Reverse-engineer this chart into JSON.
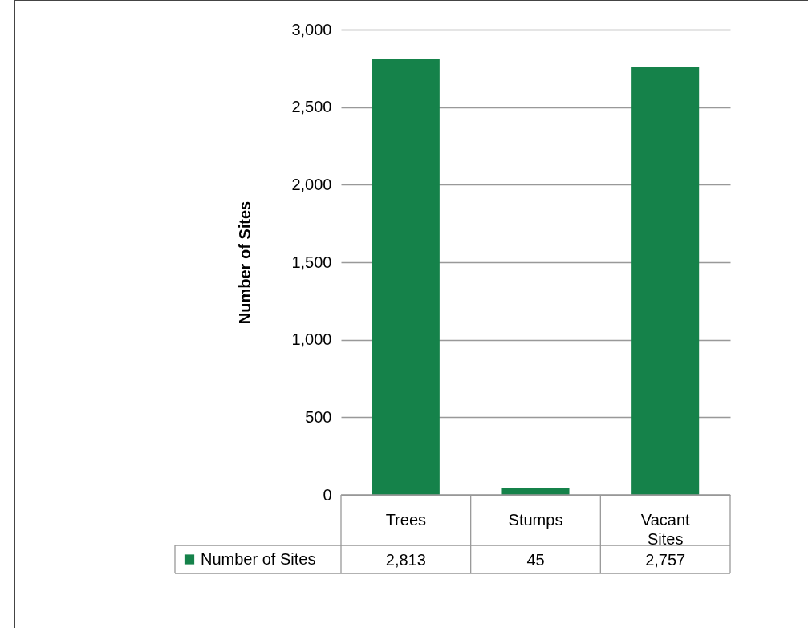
{
  "chart_data": {
    "type": "bar",
    "ylabel": "Number of Sites",
    "categories": [
      "Trees",
      "Stumps",
      "Vacant Sites"
    ],
    "series": [
      {
        "name": "Number of Sites",
        "color": "#15824a",
        "values": [
          2813,
          45,
          2757
        ],
        "value_labels": [
          "2,813",
          "45",
          "2,757"
        ]
      }
    ],
    "ylim": [
      0,
      3000
    ],
    "yticks": [
      0,
      500,
      {
        "value": 1000,
        "label": "1,000"
      },
      {
        "value": 1500,
        "label": "1,500"
      },
      {
        "value": 2000,
        "label": "2,000"
      },
      {
        "value": 2500,
        "label": "2,500"
      },
      {
        "value": 3000,
        "label": "3,000"
      }
    ],
    "grid": "y",
    "legend": "bottom left"
  }
}
